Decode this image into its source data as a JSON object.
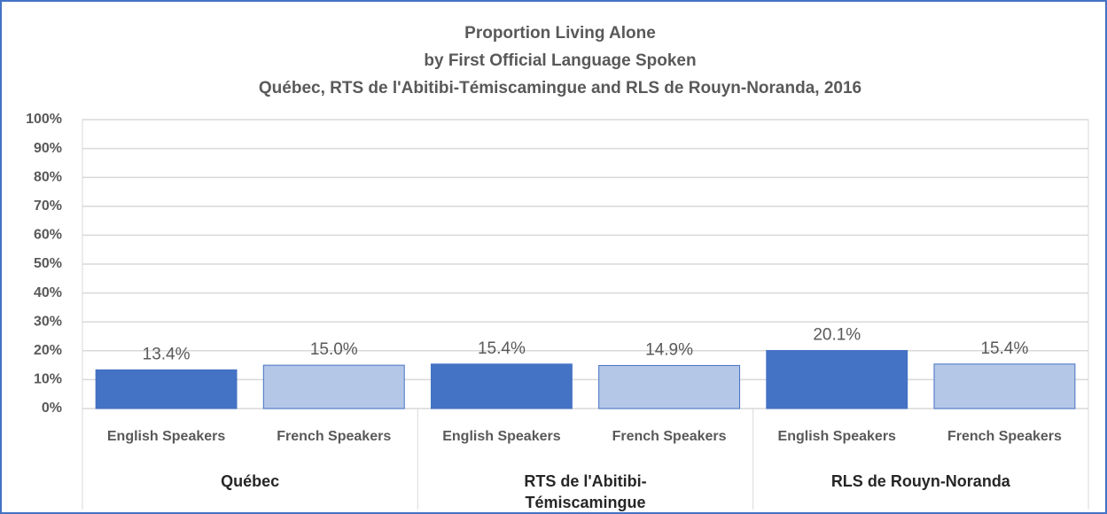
{
  "chart_data": {
    "type": "bar",
    "title": [
      "Proportion Living Alone",
      "by First Official Language Spoken",
      "Québec, RTS de l'Abitibi-Témiscamingue and RLS de Rouyn-Noranda, 2016"
    ],
    "groups": [
      {
        "label": "Québec",
        "categories": [
          "English Speakers",
          "French Speakers"
        ],
        "values": [
          13.4,
          15.0
        ],
        "value_labels": [
          "13.4%",
          "15.0%"
        ]
      },
      {
        "label": "RTS de l'Abitibi-Témiscamingue",
        "categories": [
          "English Speakers",
          "French Speakers"
        ],
        "values": [
          15.4,
          14.9
        ],
        "value_labels": [
          "15.4%",
          "14.9%"
        ]
      },
      {
        "label": "RLS de Rouyn-Noranda",
        "categories": [
          "English Speakers",
          "French Speakers"
        ],
        "values": [
          20.1,
          15.4
        ],
        "value_labels": [
          "20.1%",
          "15.4%"
        ]
      }
    ],
    "colors": [
      "#4472c4",
      "#b4c7e7"
    ],
    "ylim": [
      0,
      100
    ],
    "yticks": [
      {
        "value": 0,
        "label": "0%"
      },
      {
        "value": 10,
        "label": "10%"
      },
      {
        "value": 20,
        "label": "20%"
      },
      {
        "value": 30,
        "label": "30%"
      },
      {
        "value": 40,
        "label": "40%"
      },
      {
        "value": 50,
        "label": "50%"
      },
      {
        "value": 60,
        "label": "60%"
      },
      {
        "value": 70,
        "label": "70%"
      },
      {
        "value": 80,
        "label": "80%"
      },
      {
        "value": 90,
        "label": "90%"
      },
      {
        "value": 100,
        "label": "100%"
      }
    ],
    "grid": true
  }
}
